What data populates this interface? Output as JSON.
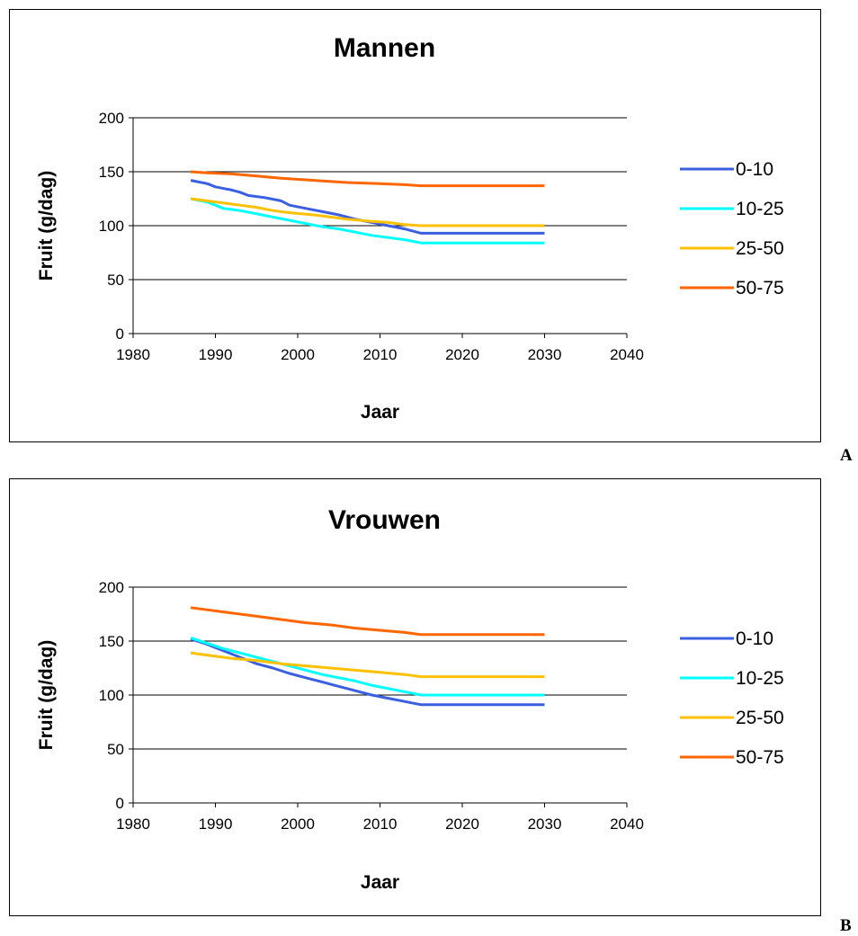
{
  "chart_data": [
    {
      "type": "line",
      "panel_label": "A",
      "title": "Mannen",
      "xlabel": "Jaar",
      "ylabel": "Fruit (g/dag)",
      "xlim": [
        1980,
        2040
      ],
      "ylim": [
        0,
        200
      ],
      "xticks": [
        1980,
        1990,
        2000,
        2010,
        2020,
        2030,
        2040
      ],
      "yticks": [
        0,
        50,
        100,
        150,
        200
      ],
      "grid": "horizontal",
      "legend": "right",
      "series": [
        {
          "name": "0-10",
          "color": "#3A5FE0",
          "x": [
            1987,
            1989,
            1990,
            1992,
            1993,
            1994,
            1996,
            1998,
            1999,
            2001,
            2003,
            2005,
            2007,
            2009,
            2011,
            2013,
            2015,
            2030
          ],
          "y": [
            142,
            139,
            136,
            133,
            131,
            128,
            126,
            123,
            119,
            116,
            113,
            110,
            106,
            103,
            100,
            97,
            93,
            93
          ]
        },
        {
          "name": "10-25",
          "color": "#00FFFF",
          "x": [
            1987,
            1989,
            1990,
            1991,
            1993,
            1995,
            1997,
            1999,
            2001,
            2003,
            2005,
            2007,
            2009,
            2011,
            2013,
            2015,
            2030
          ],
          "y": [
            125,
            122,
            119,
            116,
            114,
            111,
            108,
            105,
            102,
            99,
            97,
            94,
            91,
            89,
            87,
            84,
            84
          ]
        },
        {
          "name": "25-50",
          "color": "#FFC000",
          "x": [
            1987,
            1990,
            1993,
            1995,
            1997,
            1999,
            2002,
            2004,
            2006,
            2009,
            2011,
            2013,
            2015,
            2030
          ],
          "y": [
            125,
            122,
            119,
            117,
            114,
            112,
            110,
            108,
            106,
            104,
            103,
            101,
            100,
            100
          ]
        },
        {
          "name": "50-75",
          "color": "#FF6600",
          "x": [
            1987,
            1989,
            1992,
            1995,
            1998,
            2002,
            2006,
            2010,
            2013,
            2015,
            2030
          ],
          "y": [
            150,
            149,
            148,
            146,
            144,
            142,
            140,
            139,
            138,
            137,
            137
          ]
        }
      ]
    },
    {
      "type": "line",
      "panel_label": "B",
      "title": "Vrouwen",
      "xlabel": "Jaar",
      "ylabel": "Fruit (g/dag)",
      "xlim": [
        1980,
        2040
      ],
      "ylim": [
        0,
        200
      ],
      "xticks": [
        1980,
        1990,
        2000,
        2010,
        2020,
        2030,
        2040
      ],
      "yticks": [
        0,
        50,
        100,
        150,
        200
      ],
      "grid": "horizontal",
      "legend": "right",
      "series": [
        {
          "name": "0-10",
          "color": "#3A5FE0",
          "x": [
            1987,
            1989,
            1991,
            1993,
            1995,
            1997,
            1999,
            2001,
            2003,
            2005,
            2007,
            2009,
            2011,
            2013,
            2015,
            2030
          ],
          "y": [
            152,
            147,
            141,
            135,
            129,
            125,
            120,
            116,
            112,
            108,
            104,
            100,
            97,
            94,
            91,
            91
          ]
        },
        {
          "name": "10-25",
          "color": "#00FFFF",
          "x": [
            1987,
            1989,
            1991,
            1993,
            1995,
            1997,
            1999,
            2001,
            2003,
            2005,
            2007,
            2009,
            2011,
            2013,
            2015,
            2030
          ],
          "y": [
            153,
            148,
            143,
            139,
            135,
            131,
            127,
            123,
            119,
            116,
            113,
            109,
            106,
            103,
            100,
            100
          ]
        },
        {
          "name": "25-50",
          "color": "#FFC000",
          "x": [
            1987,
            1989,
            1992,
            1995,
            1998,
            2001,
            2004,
            2007,
            2010,
            2013,
            2015,
            2030
          ],
          "y": [
            139,
            137,
            134,
            132,
            129,
            127,
            125,
            123,
            121,
            119,
            117,
            117
          ]
        },
        {
          "name": "50-75",
          "color": "#FF6600",
          "x": [
            1987,
            1989,
            1992,
            1995,
            1998,
            2001,
            2004,
            2007,
            2010,
            2013,
            2015,
            2030
          ],
          "y": [
            181,
            179,
            176,
            173,
            170,
            167,
            165,
            162,
            160,
            158,
            156,
            156
          ]
        }
      ]
    }
  ]
}
